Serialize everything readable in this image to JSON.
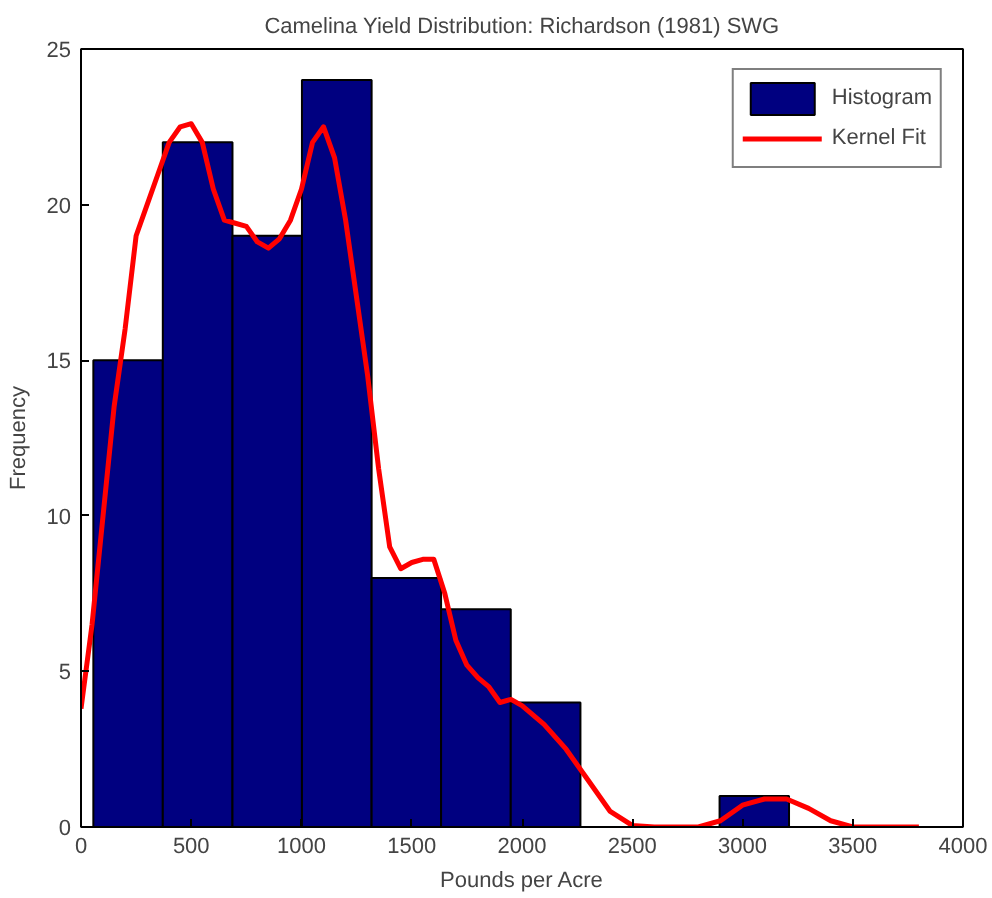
{
  "chart_data": {
    "type": "histogram",
    "title": "Camelina Yield Distribution: Richardson (1981) SWG",
    "xlabel": "Pounds per Acre",
    "ylabel": "Frequency",
    "xlim": [
      0,
      4000
    ],
    "xticks": [
      0,
      500,
      1000,
      1500,
      2000,
      2500,
      3000,
      3500,
      4000
    ],
    "ylim": [
      0,
      25
    ],
    "yticks": [
      0,
      5,
      10,
      15,
      20,
      25
    ],
    "grid": false,
    "legend": "top right",
    "series": [
      {
        "name": "Histogram",
        "color": "#000080",
        "bins": [
          56,
          371,
          687,
          1002,
          1318,
          1633,
          1949,
          2265,
          2580,
          2896,
          3211
        ],
        "values": [
          15,
          22,
          19,
          24,
          8,
          7,
          4,
          0,
          0,
          1
        ]
      },
      {
        "type": "line",
        "name": "Kernel Fit",
        "color": "#ff0000",
        "x": [
          0,
          50,
          100,
          150,
          200,
          250,
          300,
          350,
          400,
          450,
          500,
          550,
          600,
          650,
          700,
          750,
          800,
          850,
          900,
          950,
          1000,
          1050,
          1100,
          1150,
          1200,
          1250,
          1300,
          1350,
          1400,
          1450,
          1500,
          1550,
          1600,
          1650,
          1700,
          1750,
          1800,
          1850,
          1900,
          1950,
          2000,
          2100,
          2200,
          2300,
          2400,
          2500,
          2600,
          2800,
          2900,
          3000,
          3100,
          3200,
          3300,
          3400,
          3500,
          3800
        ],
        "values": [
          3.8,
          6.5,
          10,
          13.5,
          16,
          19,
          20,
          21,
          22,
          22.5,
          22.6,
          22,
          20.5,
          19.5,
          19.4,
          19.3,
          18.8,
          18.6,
          18.9,
          19.5,
          20.5,
          22,
          22.5,
          21.5,
          19.5,
          17,
          14.5,
          11.5,
          9,
          8.3,
          8.5,
          8.6,
          8.6,
          7.5,
          6,
          5.2,
          4.8,
          4.5,
          4,
          4.1,
          3.9,
          3.3,
          2.5,
          1.5,
          0.5,
          0.05,
          0,
          0,
          0.2,
          0.7,
          0.9,
          0.9,
          0.6,
          0.2,
          0,
          0
        ]
      }
    ]
  }
}
